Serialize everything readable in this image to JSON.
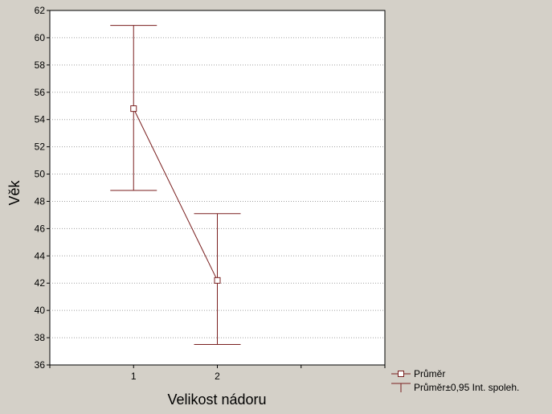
{
  "chart_data": {
    "type": "line",
    "xlabel": "Velikost nádoru",
    "ylabel": "Věk",
    "categories": [
      "1",
      "2"
    ],
    "xlim": [
      0,
      4
    ],
    "ylim": [
      36,
      62
    ],
    "yticks": [
      36,
      38,
      40,
      42,
      44,
      46,
      48,
      50,
      52,
      54,
      56,
      58,
      60,
      62
    ],
    "grid": true,
    "legend_position": "bottom-right",
    "series": [
      {
        "name": "Průměr",
        "values": [
          54.8,
          42.2
        ],
        "ci_lower": [
          48.8,
          37.5
        ],
        "ci_upper": [
          60.9,
          47.1
        ]
      }
    ],
    "legend": [
      {
        "label": "Průměr",
        "marker": "square-line"
      },
      {
        "label": "Průměr±0,95 Int. spoleh.",
        "marker": "whisker"
      }
    ],
    "colors": {
      "series": "#7a1f1f",
      "background": "#d4d0c8",
      "plot_area": "#ffffff",
      "grid": "#a0a0a0"
    }
  }
}
